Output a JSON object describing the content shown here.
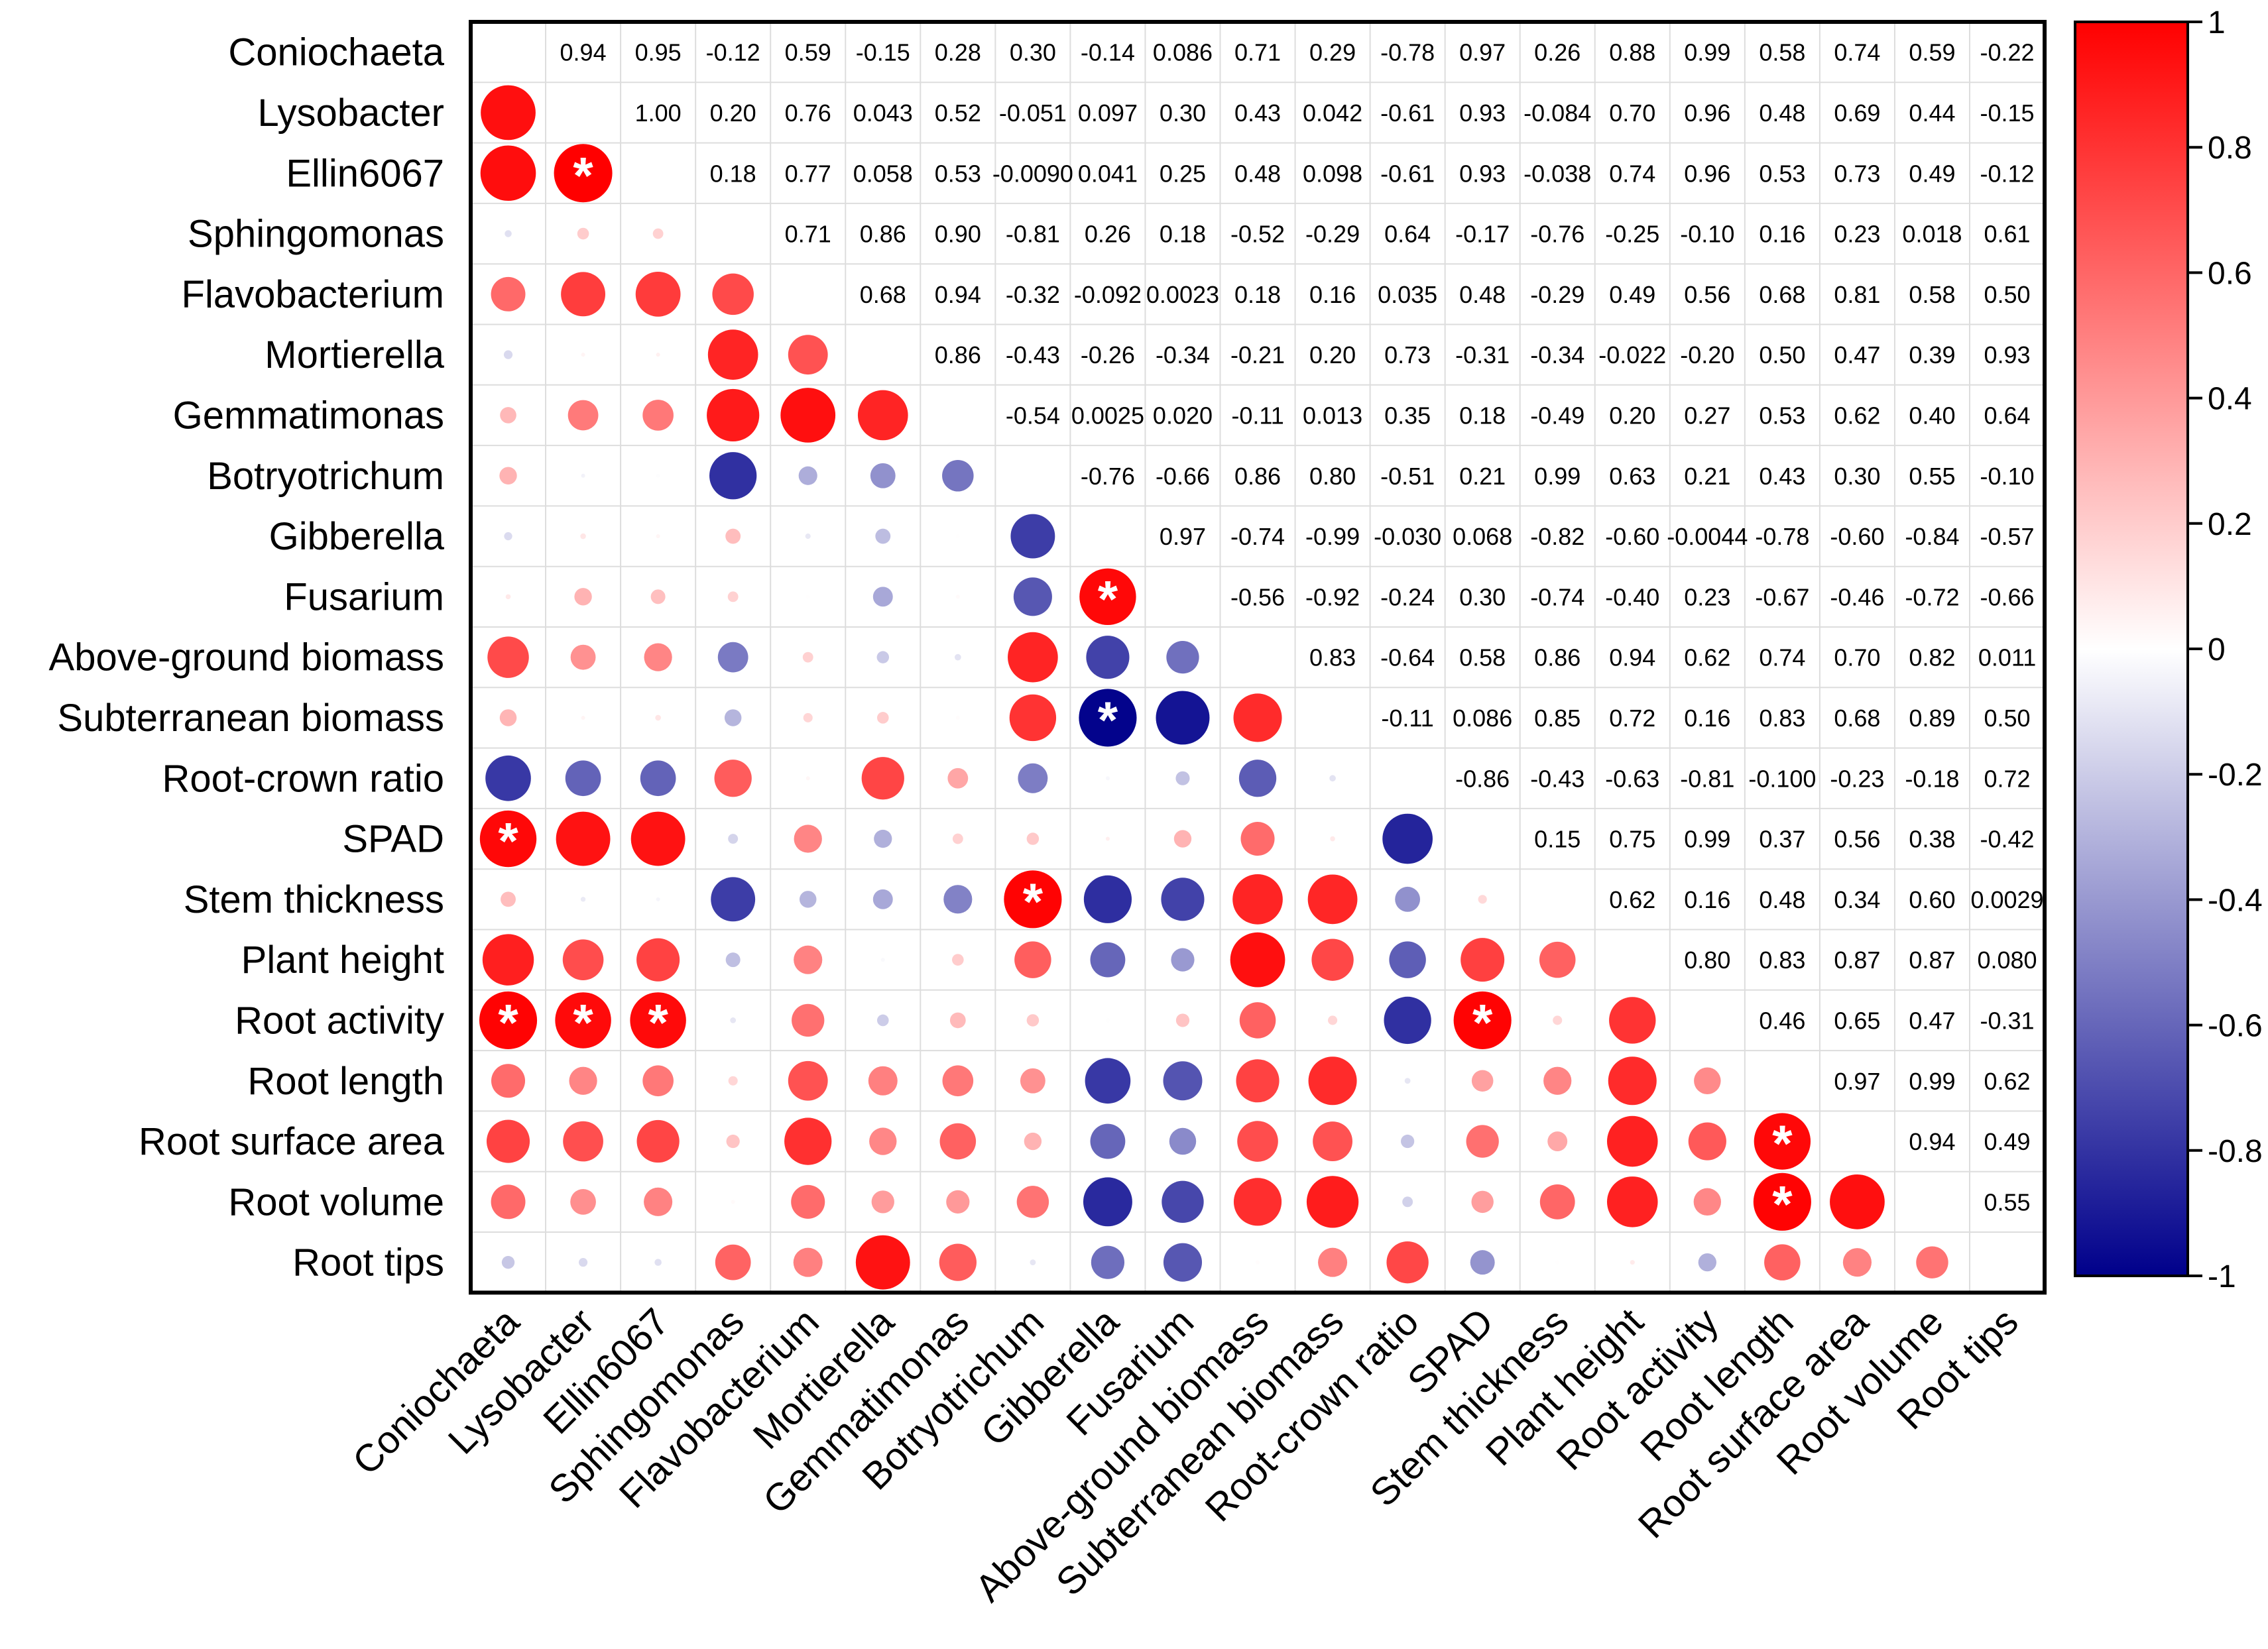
{
  "chart_data": {
    "type": "heatmap",
    "variables": [
      "Coniochaeta",
      "Lysobacter",
      "Ellin6067",
      "Sphingomonas",
      "Flavobacterium",
      "Mortierella",
      "Gemmatimonas",
      "Botryotrichum",
      "Gibberella",
      "Fusarium",
      "Above-ground biomass",
      "Subterranean biomass",
      "Root-crown ratio",
      "SPAD",
      "Stem thickness",
      "Plant height",
      "Root activity",
      "Root length",
      "Root surface area",
      "Root volume",
      "Root tips"
    ],
    "upper_labels": [
      [
        null,
        "0.94",
        "0.95",
        "-0.12",
        "0.59",
        "-0.15",
        "0.28",
        "0.30",
        "-0.14",
        "0.086",
        "0.71",
        "0.29",
        "-0.78",
        "0.97",
        "0.26",
        "0.88",
        "0.99",
        "0.58",
        "0.74",
        "0.59",
        "-0.22"
      ],
      [
        null,
        null,
        "1.00",
        "0.20",
        "0.76",
        "0.043",
        "0.52",
        "-0.051",
        "0.097",
        "0.30",
        "0.43",
        "0.042",
        "-0.61",
        "0.93",
        "-0.084",
        "0.70",
        "0.96",
        "0.48",
        "0.69",
        "0.44",
        "-0.15"
      ],
      [
        null,
        null,
        null,
        "0.18",
        "0.77",
        "0.058",
        "0.53",
        "-0.0090",
        "0.041",
        "0.25",
        "0.48",
        "0.098",
        "-0.61",
        "0.93",
        "-0.038",
        "0.74",
        "0.96",
        "0.53",
        "0.73",
        "0.49",
        "-0.12"
      ],
      [
        null,
        null,
        null,
        null,
        "0.71",
        "0.86",
        "0.90",
        "-0.81",
        "0.26",
        "0.18",
        "-0.52",
        "-0.29",
        "0.64",
        "-0.17",
        "-0.76",
        "-0.25",
        "-0.10",
        "0.16",
        "0.23",
        "0.018",
        "0.61"
      ],
      [
        null,
        null,
        null,
        null,
        null,
        "0.68",
        "0.94",
        "-0.32",
        "-0.092",
        "0.0023",
        "0.18",
        "0.16",
        "0.035",
        "0.48",
        "-0.29",
        "0.49",
        "0.56",
        "0.68",
        "0.81",
        "0.58",
        "0.50"
      ],
      [
        null,
        null,
        null,
        null,
        null,
        null,
        "0.86",
        "-0.43",
        "-0.26",
        "-0.34",
        "-0.21",
        "0.20",
        "0.73",
        "-0.31",
        "-0.34",
        "-0.022",
        "-0.20",
        "0.50",
        "0.47",
        "0.39",
        "0.93"
      ],
      [
        null,
        null,
        null,
        null,
        null,
        null,
        null,
        "-0.54",
        "0.0025",
        "0.020",
        "-0.11",
        "0.013",
        "0.35",
        "0.18",
        "-0.49",
        "0.20",
        "0.27",
        "0.53",
        "0.62",
        "0.40",
        "0.64"
      ],
      [
        null,
        null,
        null,
        null,
        null,
        null,
        null,
        null,
        "-0.76",
        "-0.66",
        "0.86",
        "0.80",
        "-0.51",
        "0.21",
        "0.99",
        "0.63",
        "0.21",
        "0.43",
        "0.30",
        "0.55",
        "-0.10"
      ],
      [
        null,
        null,
        null,
        null,
        null,
        null,
        null,
        null,
        null,
        "0.97",
        "-0.74",
        "-0.99",
        "-0.030",
        "0.068",
        "-0.82",
        "-0.60",
        "-0.0044",
        "-0.78",
        "-0.60",
        "-0.84",
        "-0.57"
      ],
      [
        null,
        null,
        null,
        null,
        null,
        null,
        null,
        null,
        null,
        null,
        "-0.56",
        "-0.92",
        "-0.24",
        "0.30",
        "-0.74",
        "-0.40",
        "0.23",
        "-0.67",
        "-0.46",
        "-0.72",
        "-0.66"
      ],
      [
        null,
        null,
        null,
        null,
        null,
        null,
        null,
        null,
        null,
        null,
        null,
        "0.83",
        "-0.64",
        "0.58",
        "0.86",
        "0.94",
        "0.62",
        "0.74",
        "0.70",
        "0.82",
        "0.011"
      ],
      [
        null,
        null,
        null,
        null,
        null,
        null,
        null,
        null,
        null,
        null,
        null,
        null,
        "-0.11",
        "0.086",
        "0.85",
        "0.72",
        "0.16",
        "0.83",
        "0.68",
        "0.89",
        "0.50"
      ],
      [
        null,
        null,
        null,
        null,
        null,
        null,
        null,
        null,
        null,
        null,
        null,
        null,
        null,
        "-0.86",
        "-0.43",
        "-0.63",
        "-0.81",
        "-0.100",
        "-0.23",
        "-0.18",
        "0.72"
      ],
      [
        null,
        null,
        null,
        null,
        null,
        null,
        null,
        null,
        null,
        null,
        null,
        null,
        null,
        null,
        "0.15",
        "0.75",
        "0.99",
        "0.37",
        "0.56",
        "0.38",
        "-0.42"
      ],
      [
        null,
        null,
        null,
        null,
        null,
        null,
        null,
        null,
        null,
        null,
        null,
        null,
        null,
        null,
        null,
        "0.62",
        "0.16",
        "0.48",
        "0.34",
        "0.60",
        "0.0029"
      ],
      [
        null,
        null,
        null,
        null,
        null,
        null,
        null,
        null,
        null,
        null,
        null,
        null,
        null,
        null,
        null,
        null,
        "0.80",
        "0.83",
        "0.87",
        "0.87",
        "0.080"
      ],
      [
        null,
        null,
        null,
        null,
        null,
        null,
        null,
        null,
        null,
        null,
        null,
        null,
        null,
        null,
        null,
        null,
        null,
        "0.46",
        "0.65",
        "0.47",
        "-0.31"
      ],
      [
        null,
        null,
        null,
        null,
        null,
        null,
        null,
        null,
        null,
        null,
        null,
        null,
        null,
        null,
        null,
        null,
        null,
        null,
        "0.97",
        "0.99",
        "0.62"
      ],
      [
        null,
        null,
        null,
        null,
        null,
        null,
        null,
        null,
        null,
        null,
        null,
        null,
        null,
        null,
        null,
        null,
        null,
        null,
        null,
        "0.94",
        "0.49"
      ],
      [
        null,
        null,
        null,
        null,
        null,
        null,
        null,
        null,
        null,
        null,
        null,
        null,
        null,
        null,
        null,
        null,
        null,
        null,
        null,
        null,
        "0.55"
      ],
      [
        null,
        null,
        null,
        null,
        null,
        null,
        null,
        null,
        null,
        null,
        null,
        null,
        null,
        null,
        null,
        null,
        null,
        null,
        null,
        null,
        null
      ]
    ],
    "significant_pairs": [
      [
        1,
        2
      ],
      [
        0,
        13
      ],
      [
        8,
        9
      ],
      [
        8,
        11
      ],
      [
        7,
        14
      ],
      [
        0,
        16
      ],
      [
        1,
        16
      ],
      [
        2,
        16
      ],
      [
        13,
        16
      ],
      [
        17,
        18
      ],
      [
        17,
        19
      ]
    ],
    "significance_marker": "*",
    "colorbar": {
      "min": -1,
      "max": 1,
      "ticks": [
        "1",
        "0.8",
        "0.6",
        "0.4",
        "0.2",
        "0",
        "-0.2",
        "-0.4",
        "-0.6",
        "-0.8",
        "-1"
      ],
      "colors": [
        "#00008b",
        "#ffffff",
        "#ff0000"
      ]
    },
    "lower_triangle": "circles sized and colored by correlation",
    "upper_triangle": "printed correlation coefficients"
  }
}
